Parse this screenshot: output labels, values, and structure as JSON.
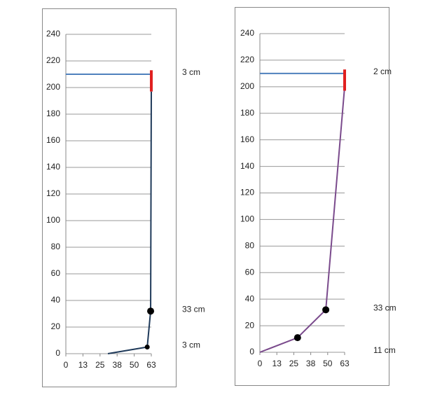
{
  "chart_data": [
    {
      "type": "line",
      "xlim": [
        0,
        63
      ],
      "ylim": [
        0,
        240
      ],
      "xticks": [
        0,
        {
          "value": 12.6,
          "label": "13"
        },
        {
          "value": 25.2,
          "label": "25"
        },
        {
          "value": 37.8,
          "label": "38"
        },
        {
          "value": 50.4,
          "label": "50"
        },
        63
      ],
      "yticks": [
        0,
        20,
        40,
        60,
        80,
        100,
        120,
        140,
        160,
        180,
        200,
        220,
        240
      ],
      "grid": true,
      "series": [
        {
          "style": "line",
          "color": "#4f81bd",
          "x": [
            0,
            63
          ],
          "values": [
            210,
            210
          ]
        },
        {
          "style": "line",
          "color": "#1f3a5a",
          "x": [
            31,
            60,
            62.5,
            63
          ],
          "values": [
            0,
            5,
            32,
            197
          ]
        },
        {
          "style": "line",
          "color": "#e02020",
          "x": [
            63,
            63
          ],
          "values": [
            197,
            213
          ]
        },
        {
          "style": "dots",
          "color": "#000000",
          "x": [
            60,
            62.5
          ],
          "values": [
            5,
            32
          ]
        }
      ],
      "annotations": [
        {
          "text": "3 cm",
          "y": 210
        },
        {
          "text": "33 cm",
          "y": 32
        },
        {
          "text": "3 cm",
          "y": 5
        }
      ]
    },
    {
      "type": "line",
      "xlim": [
        0,
        63
      ],
      "ylim": [
        0,
        240
      ],
      "xticks": [
        0,
        {
          "value": 12.6,
          "label": "13"
        },
        {
          "value": 25.2,
          "label": "25"
        },
        {
          "value": 37.8,
          "label": "38"
        },
        {
          "value": 50.4,
          "label": "50"
        },
        63
      ],
      "yticks": [
        0,
        20,
        40,
        60,
        80,
        100,
        120,
        140,
        160,
        180,
        200,
        220,
        240
      ],
      "grid": true,
      "series": [
        {
          "style": "line",
          "color": "#4f81bd",
          "x": [
            0,
            63
          ],
          "values": [
            210,
            210
          ]
        },
        {
          "style": "line",
          "color": "#7a4a8c",
          "x": [
            0,
            28,
            49,
            63
          ],
          "values": [
            0,
            11,
            32,
            200
          ]
        },
        {
          "style": "line",
          "color": "#e02020",
          "x": [
            63,
            63
          ],
          "values": [
            197,
            213
          ]
        },
        {
          "style": "dots",
          "color": "#000000",
          "x": [
            28,
            49
          ],
          "values": [
            11,
            32
          ]
        }
      ],
      "annotations": [
        {
          "text": "2 cm",
          "y": 210
        },
        {
          "text": "33 cm",
          "y": 32
        },
        {
          "text": "11 cm",
          "y": 0
        }
      ]
    }
  ]
}
